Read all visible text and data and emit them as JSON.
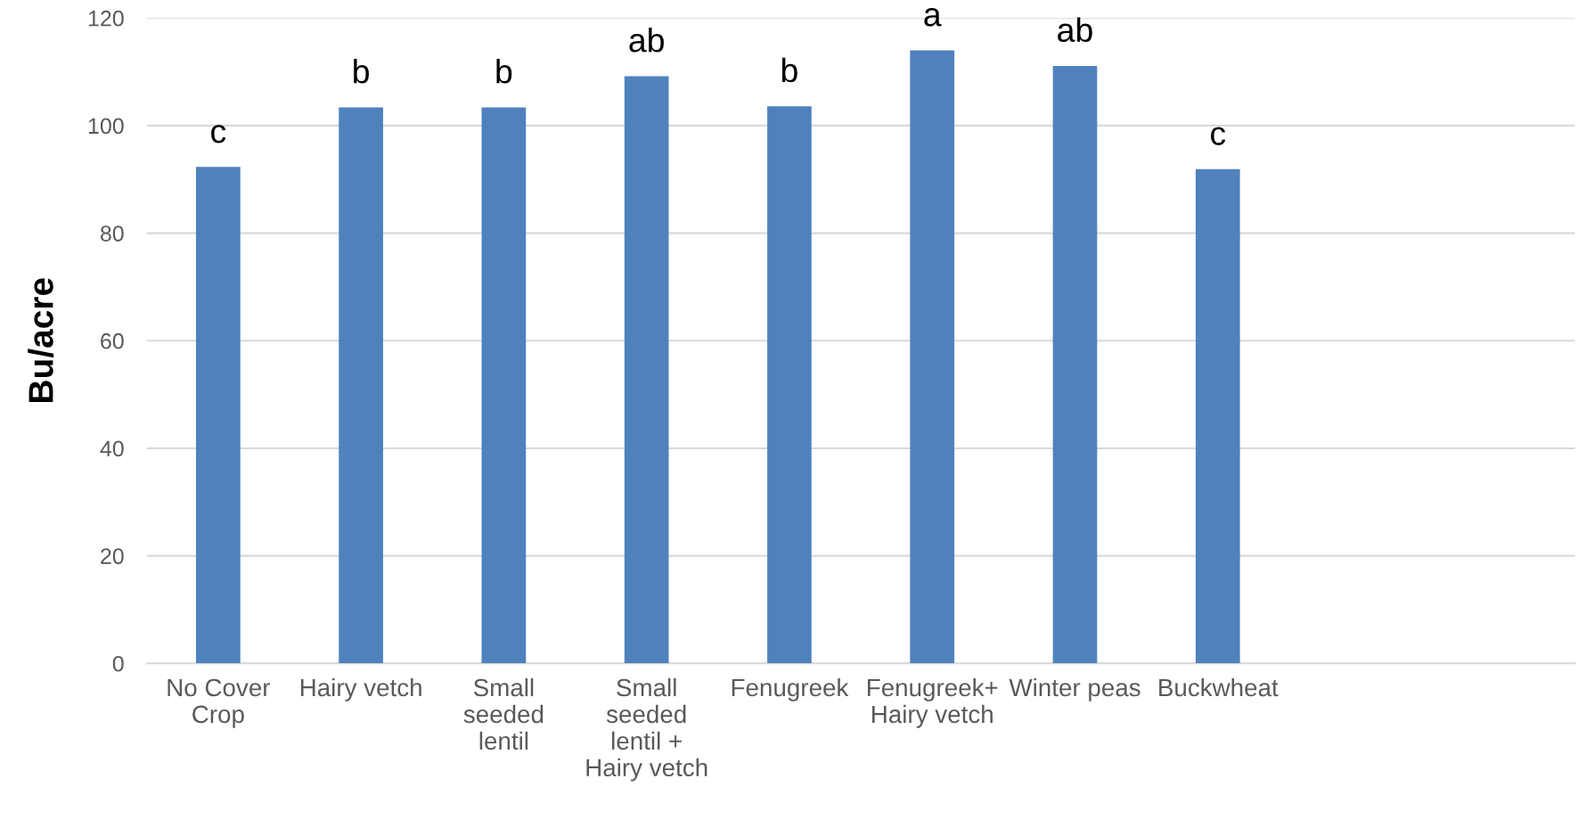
{
  "chart_data": {
    "type": "bar",
    "ylabel": "Bu/acre",
    "categories": [
      "No Cover\nCrop",
      "Hairy vetch",
      "Small\nseeded\nlentil",
      "Small\nseeded\nlentil +\nHairy vetch",
      "Fenugreek",
      "Fenugreek+\nHairy vetch",
      "Winter peas",
      "Buckwheat",
      null,
      null
    ],
    "values": [
      92.3,
      103.4,
      103.4,
      109.2,
      103.6,
      114.0,
      111.1,
      91.9,
      null,
      null
    ],
    "color": "#4f81bd",
    "ylim": [
      0,
      120
    ],
    "yticks": [
      0,
      20,
      40,
      60,
      80,
      100,
      120
    ],
    "grid": "y",
    "legend": false,
    "annotations": [
      {
        "text": "c",
        "x": "No Cover\nCrop",
        "y": 92.3
      },
      {
        "text": "b",
        "x": "Hairy vetch",
        "y": 103.4
      },
      {
        "text": "b",
        "x": "Small\nseeded\nlentil",
        "y": 103.4
      },
      {
        "text": "ab",
        "x": "Small\nseeded\nlentil +\nHairy vetch",
        "y": 109.2
      },
      {
        "text": "b",
        "x": "Fenugreek",
        "y": 103.6
      },
      {
        "text": "a",
        "x": "Fenugreek+\nHairy vetch",
        "y": 114.0
      },
      {
        "text": "ab",
        "x": "Winter peas",
        "y": 111.1
      },
      {
        "text": "c",
        "x": "Buckwheat",
        "y": 91.9
      }
    ]
  }
}
